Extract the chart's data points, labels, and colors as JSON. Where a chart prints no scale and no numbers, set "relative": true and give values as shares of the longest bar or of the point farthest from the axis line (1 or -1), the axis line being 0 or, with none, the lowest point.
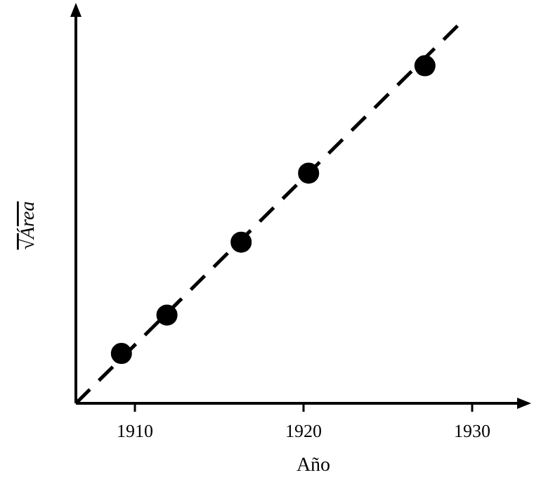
{
  "chart_data": {
    "type": "scatter",
    "xlabel": "Año",
    "ylabel": "√Área",
    "relative": true,
    "xlim": [
      1906.5,
      1933
    ],
    "xticks": [
      1910,
      1920,
      1930
    ],
    "tick_labels": "x",
    "series": [
      {
        "color": "#000000",
        "marker": "circle",
        "x": [
          1909.2,
          1911.9,
          1916.3,
          1920.3,
          1927.2
        ],
        "values": [
          0.13,
          0.23,
          0.42,
          0.6,
          0.88
        ]
      },
      {
        "type": "line",
        "color": "#000000",
        "line_style": "dashed",
        "x": [
          1906.5,
          1929.5
        ],
        "values": [
          0,
          1
        ]
      }
    ]
  }
}
